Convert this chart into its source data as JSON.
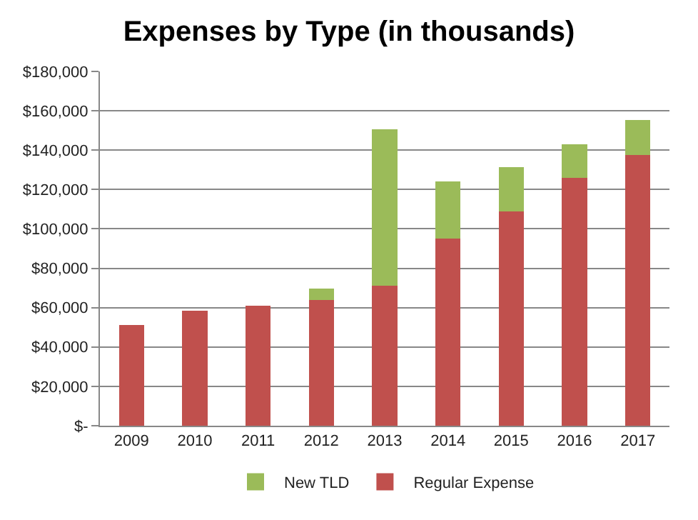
{
  "chart_data": {
    "type": "bar",
    "title": "Expenses by Type (in thousands)",
    "stacked": true,
    "categories": [
      "2009",
      "2010",
      "2011",
      "2012",
      "2013",
      "2014",
      "2015",
      "2016",
      "2017"
    ],
    "series": [
      {
        "name": "Regular Expense",
        "color": "#c0504d",
        "values": [
          51000,
          58500,
          61000,
          64000,
          71000,
          95000,
          109000,
          126000,
          137500
        ]
      },
      {
        "name": "New TLD",
        "color": "#9bbb59",
        "values": [
          null,
          null,
          null,
          5500,
          79500,
          29000,
          22500,
          17000,
          18000
        ]
      }
    ],
    "ylim": [
      0,
      180000
    ],
    "yticks": [
      {
        "value": 0,
        "label": "$-"
      },
      {
        "value": 20000,
        "label": "$20,000"
      },
      {
        "value": 40000,
        "label": "$40,000"
      },
      {
        "value": 60000,
        "label": "$60,000"
      },
      {
        "value": 80000,
        "label": "$80,000"
      },
      {
        "value": 100000,
        "label": "$100,000"
      },
      {
        "value": 120000,
        "label": "$120,000"
      },
      {
        "value": 140000,
        "label": "$140,000"
      },
      {
        "value": 160000,
        "label": "$160,000"
      },
      {
        "value": 180000,
        "label": "$180,000"
      }
    ],
    "grid": "y",
    "legend": "bottom"
  }
}
